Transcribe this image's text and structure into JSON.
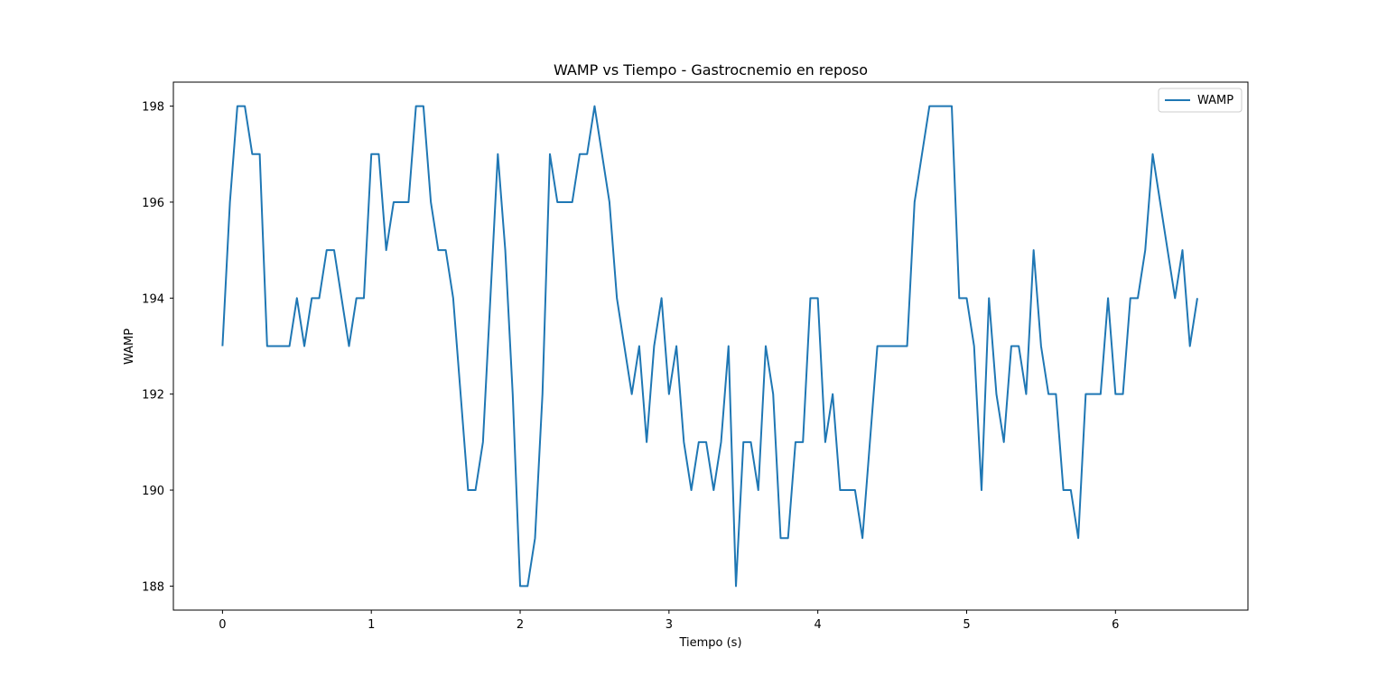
{
  "chart_data": {
    "type": "line",
    "title": "WAMP vs Tiempo - Gastrocnemio en reposo",
    "xlabel": "Tiempo (s)",
    "ylabel": "WAMP",
    "xlim": [
      -0.33,
      6.89
    ],
    "ylim": [
      187.5,
      198.5
    ],
    "xticks": [
      0,
      1,
      2,
      3,
      4,
      5,
      6
    ],
    "yticks": [
      188,
      190,
      192,
      194,
      196,
      198
    ],
    "grid": false,
    "legend_position": "top-right",
    "colors": {
      "series": "#1f77b4"
    },
    "series": [
      {
        "name": "WAMP",
        "x": [
          0,
          0.05,
          0.1,
          0.15,
          0.2,
          0.25,
          0.3,
          0.35,
          0.4,
          0.45,
          0.5,
          0.55,
          0.6,
          0.65,
          0.7,
          0.75,
          0.8,
          0.85,
          0.9,
          0.95,
          1.0,
          1.05,
          1.1,
          1.15,
          1.2,
          1.25,
          1.3,
          1.35,
          1.4,
          1.45,
          1.5,
          1.55,
          1.6,
          1.65,
          1.7,
          1.75,
          1.8,
          1.85,
          1.9,
          1.95,
          2.0,
          2.05,
          2.1,
          2.15,
          2.2,
          2.25,
          2.3,
          2.35,
          2.4,
          2.45,
          2.5,
          2.55,
          2.6,
          2.65,
          2.7,
          2.75,
          2.8,
          2.85,
          2.9,
          2.95,
          3.0,
          3.05,
          3.1,
          3.15,
          3.2,
          3.25,
          3.3,
          3.35,
          3.4,
          3.45,
          3.5,
          3.55,
          3.6,
          3.65,
          3.7,
          3.75,
          3.8,
          3.85,
          3.9,
          3.95,
          4.0,
          4.05,
          4.1,
          4.15,
          4.2,
          4.25,
          4.3,
          4.35,
          4.4,
          4.45,
          4.5,
          4.55,
          4.6,
          4.65,
          4.7,
          4.75,
          4.8,
          4.85,
          4.9,
          4.95,
          5.0,
          5.05,
          5.1,
          5.15,
          5.2,
          5.25,
          5.3,
          5.35,
          5.4,
          5.45,
          5.5,
          5.55,
          5.6,
          5.65,
          5.7,
          5.75,
          5.8,
          5.85,
          5.9,
          5.95,
          6.0,
          6.05,
          6.1,
          6.15,
          6.2,
          6.25,
          6.3,
          6.35,
          6.4,
          6.45,
          6.5,
          6.55
        ],
        "values": [
          193,
          196,
          198,
          198,
          197,
          197,
          193,
          193,
          193,
          193,
          194,
          193,
          194,
          194,
          195,
          195,
          194,
          193,
          194,
          194,
          197,
          197,
          195,
          196,
          196,
          196,
          198,
          198,
          196,
          195,
          195,
          194,
          192,
          190,
          190,
          191,
          194,
          197,
          195,
          192,
          188,
          188,
          189,
          192,
          197,
          196,
          196,
          196,
          197,
          197,
          198,
          197,
          196,
          194,
          193,
          192,
          193,
          191,
          193,
          194,
          192,
          193,
          191,
          190,
          191,
          191,
          190,
          191,
          193,
          188,
          191,
          191,
          190,
          193,
          192,
          189,
          189,
          191,
          191,
          194,
          194,
          191,
          192,
          190,
          190,
          190,
          189,
          191,
          193,
          193,
          193,
          193,
          193,
          196,
          197,
          198,
          198,
          198,
          198,
          194,
          194,
          193,
          190,
          194,
          192,
          191,
          193,
          193,
          192,
          195,
          193,
          192,
          192,
          190,
          190,
          189,
          192,
          192,
          192,
          194,
          192,
          192,
          194,
          194,
          195,
          197,
          196,
          195,
          194,
          195,
          193,
          194
        ]
      }
    ]
  }
}
